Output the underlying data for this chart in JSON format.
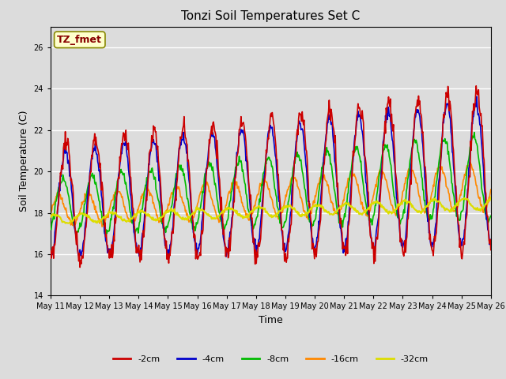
{
  "title": "Tonzi Soil Temperatures Set C",
  "xlabel": "Time",
  "ylabel": "Soil Temperature (C)",
  "ylim": [
    14,
    27
  ],
  "yticks": [
    14,
    16,
    18,
    20,
    22,
    24,
    26
  ],
  "background_color": "#dcdcdc",
  "plot_bg_color": "#dcdcdc",
  "series": {
    "-2cm": {
      "color": "#cc0000",
      "lw": 1.2
    },
    "-4cm": {
      "color": "#0000cc",
      "lw": 1.2
    },
    "-8cm": {
      "color": "#00bb00",
      "lw": 1.2
    },
    "-16cm": {
      "color": "#ff8800",
      "lw": 1.2
    },
    "-32cm": {
      "color": "#dddd00",
      "lw": 1.5
    }
  },
  "annotation_text": "TZ_fmet",
  "annotation_color": "#880000",
  "annotation_bg": "#ffffcc",
  "annotation_border": "#888800",
  "start_day": 11,
  "end_day": 26,
  "n_days": 15
}
